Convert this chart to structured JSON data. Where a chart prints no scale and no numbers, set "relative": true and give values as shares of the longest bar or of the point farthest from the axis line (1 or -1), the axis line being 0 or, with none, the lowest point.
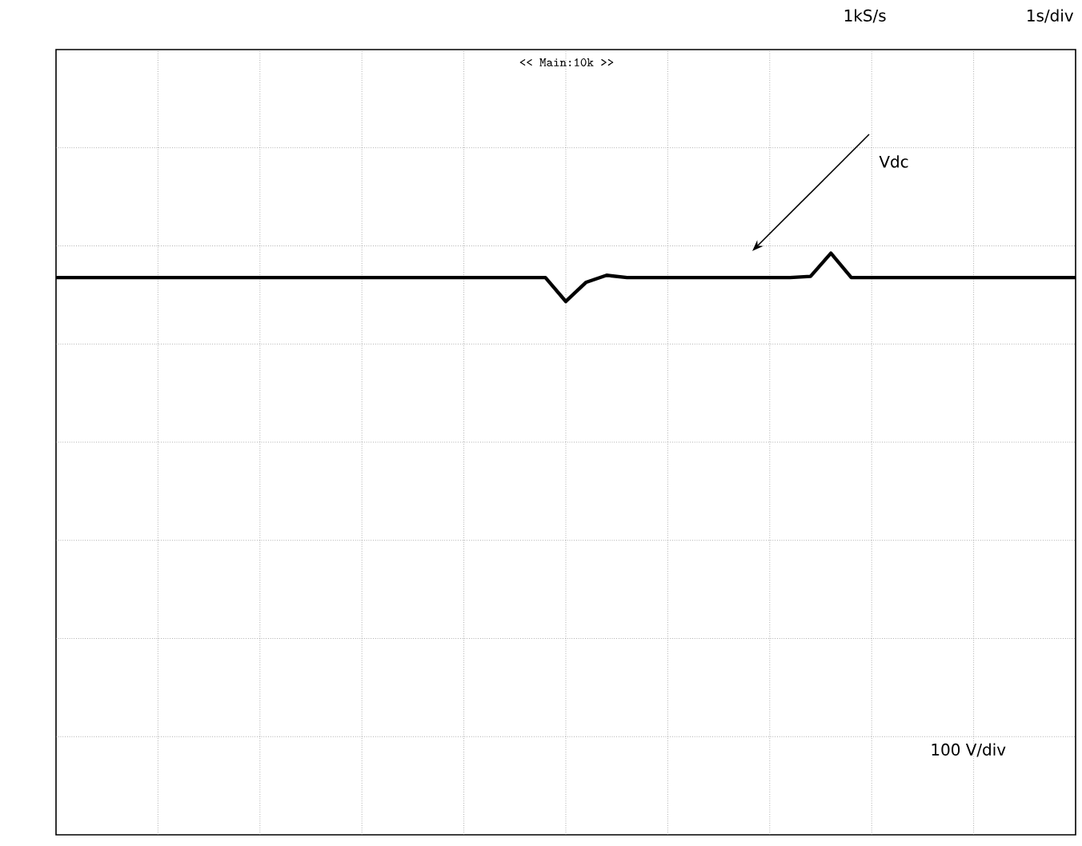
{
  "chart_data": {
    "type": "line",
    "relative": true,
    "grid": true,
    "color": "#000000",
    "categories": [
      null,
      null,
      null,
      null,
      null,
      null,
      null,
      null,
      null,
      null,
      null,
      null,
      null,
      null,
      null,
      null,
      null,
      null,
      null,
      null,
      null,
      null,
      null,
      null,
      null,
      null,
      null,
      null,
      null,
      null,
      null,
      null,
      null,
      null,
      null,
      null,
      null,
      null,
      null,
      null,
      null,
      null,
      null,
      null,
      null,
      null,
      null,
      null,
      null,
      null,
      null
    ],
    "values": [
      0.958,
      0.958,
      0.958,
      0.958,
      0.958,
      0.958,
      0.958,
      0.958,
      0.958,
      0.958,
      0.958,
      0.958,
      0.958,
      0.958,
      0.958,
      0.958,
      0.958,
      0.958,
      0.958,
      0.958,
      0.958,
      0.958,
      0.958,
      0.958,
      0.958,
      0.917,
      0.95,
      0.962,
      0.958,
      0.958,
      0.958,
      0.958,
      0.958,
      0.958,
      0.958,
      0.958,
      0.958,
      0.96,
      1.0,
      0.958,
      0.958,
      0.958,
      0.958,
      0.958,
      0.958,
      0.958,
      0.958,
      0.958,
      0.958,
      0.958,
      0.958
    ],
    "annotations": [
      "1kS/s",
      "1s/div",
      "<< Main:10k >>",
      "Vdc",
      "100 V/div"
    ]
  }
}
